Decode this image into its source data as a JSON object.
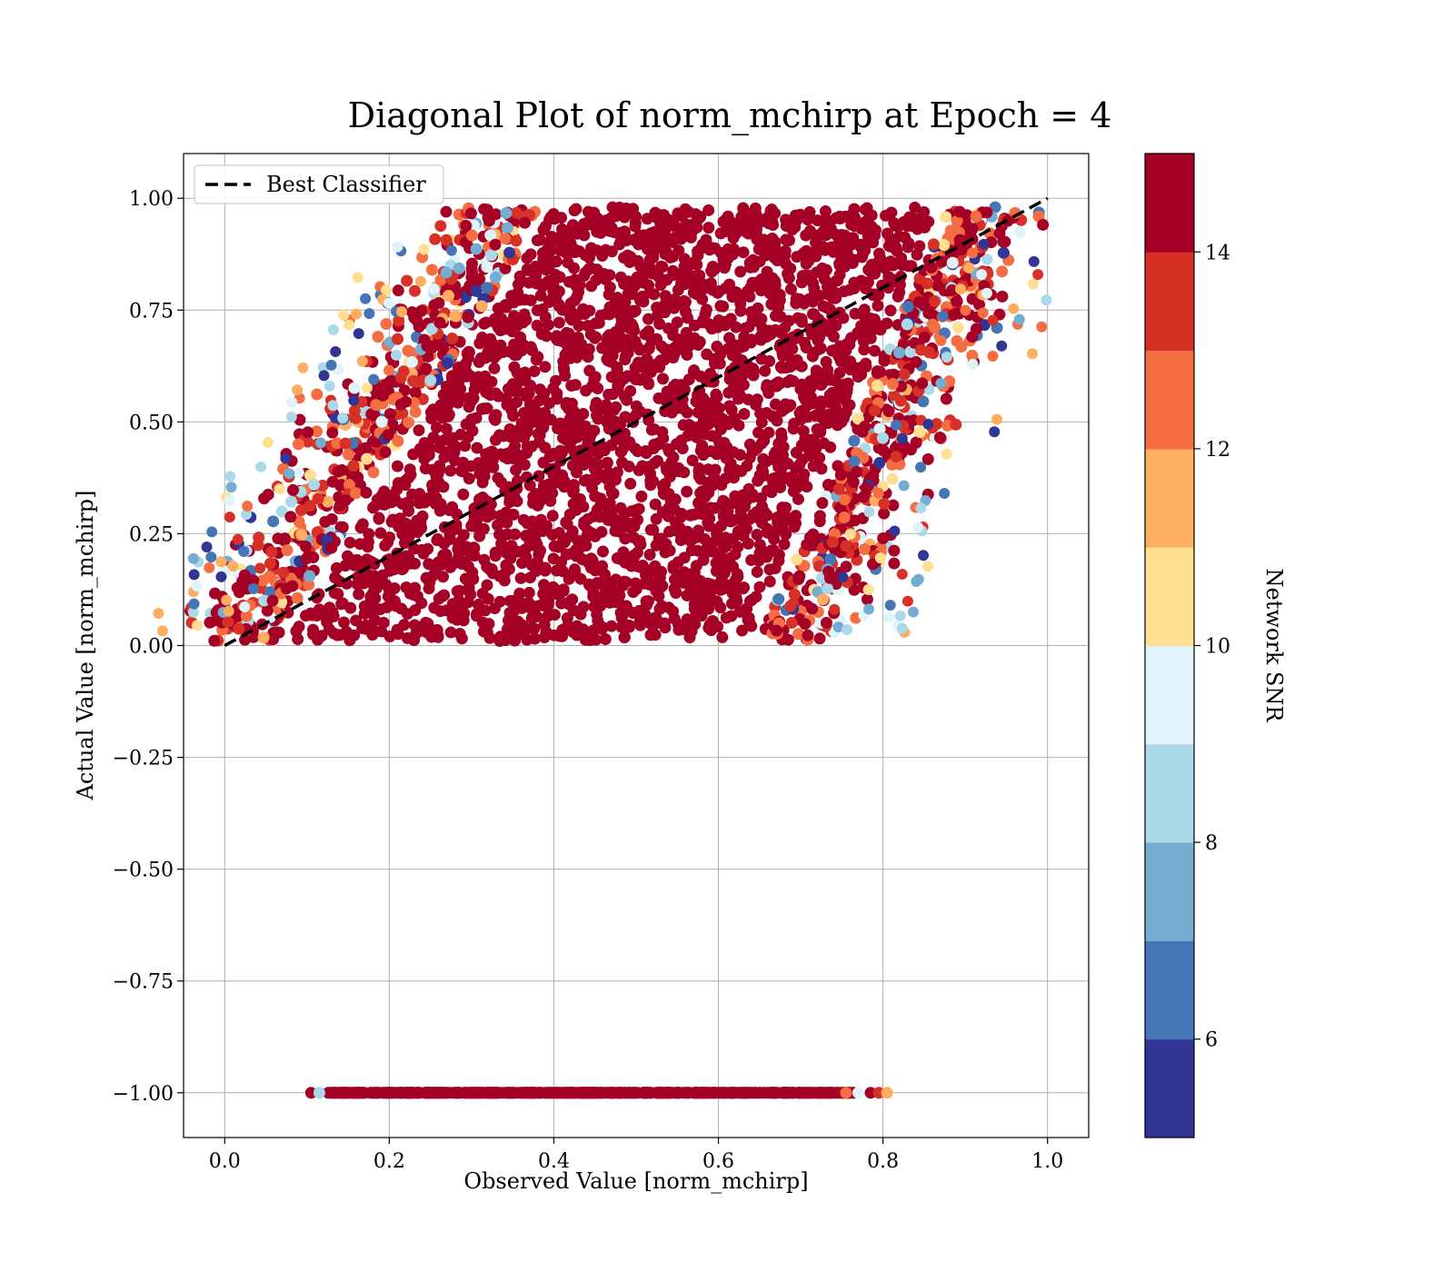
{
  "chart_data": {
    "type": "scatter",
    "title": "Diagonal Plot of norm_mchirp at Epoch = 4",
    "xlabel": "Observed Value [norm_mchirp]",
    "ylabel": "Actual Value [norm_mchirp]",
    "xlim": [
      -0.05,
      1.05
    ],
    "ylim": [
      -1.1,
      1.1
    ],
    "x_ticks": [
      0.0,
      0.2,
      0.4,
      0.6,
      0.8,
      1.0
    ],
    "x_tick_labels": [
      "0.0",
      "0.2",
      "0.4",
      "0.6",
      "0.8",
      "1.0"
    ],
    "y_ticks": [
      1.0,
      0.75,
      0.5,
      0.25,
      0.0,
      -0.25,
      -0.5,
      -0.75,
      -1.0
    ],
    "y_tick_labels": [
      "1.00",
      "0.75",
      "0.50",
      "0.25",
      "0.00",
      "−0.25",
      "−0.50",
      "−0.75",
      "−1.00"
    ],
    "grid": true,
    "legend": {
      "position": "top-left",
      "entries": [
        {
          "label": "Best Classifier",
          "style": "dashed",
          "color": "#000000"
        }
      ]
    },
    "reference_line": {
      "name": "Best Classifier",
      "x": [
        0.0,
        1.0
      ],
      "y": [
        0.0,
        1.0
      ],
      "style": "dashed",
      "color": "#000000"
    },
    "point_cloud": {
      "description_region": "parallelogram",
      "corners": [
        [
          0.04,
          0.01
        ],
        [
          0.67,
          0.01
        ],
        [
          0.9,
          0.98
        ],
        [
          0.37,
          0.98
        ]
      ],
      "dominant_color": "#a50026",
      "lower_band": {
        "y": -1.0,
        "x_range": [
          0.105,
          0.805
        ]
      }
    },
    "colorbar": {
      "label": "Network SNR",
      "range": [
        5,
        15
      ],
      "ticks": [
        6,
        8,
        10,
        12,
        14
      ],
      "tick_labels": [
        "6",
        "8",
        "10",
        "12",
        "14"
      ],
      "colors": [
        "#313695",
        "#4575b4",
        "#74add1",
        "#abd9e9",
        "#e0f3f8",
        "#fee090",
        "#fdae61",
        "#f46d43",
        "#d73027",
        "#a50026"
      ]
    }
  }
}
